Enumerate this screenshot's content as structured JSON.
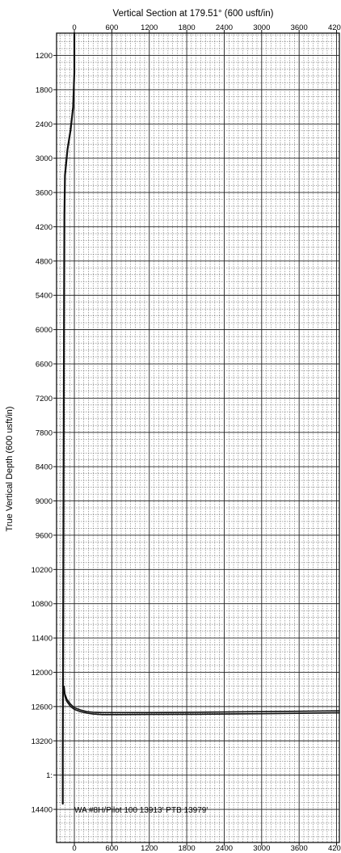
{
  "chart_data": {
    "type": "line",
    "title": "Vertical Section at 179.51° (600 usft/in)",
    "xlabel": "",
    "ylabel": "True Vertical Depth (600 usft/in)",
    "x_axis_position": "top and bottom",
    "y_inverted": true,
    "grid": true,
    "xlim": [
      -285,
      4245
    ],
    "ylim": [
      14980,
      810
    ],
    "x_ticks": [
      0,
      600,
      1200,
      1800,
      2400,
      3000,
      3600,
      4200
    ],
    "x_tick_labels": [
      "0",
      "600",
      "1200",
      "1800",
      "2400",
      "3000",
      "3600",
      "4200"
    ],
    "y_ticks": [
      1200,
      1800,
      2400,
      3000,
      3600,
      4200,
      4800,
      5400,
      6000,
      6600,
      7200,
      7800,
      8400,
      9000,
      9600,
      10200,
      10800,
      11400,
      12000,
      12600,
      13200,
      13800,
      14400
    ],
    "y_tick_labels": [
      "1200",
      "1800",
      "2400",
      "3000",
      "3600",
      "4200",
      "4800",
      "5400",
      "6000",
      "6600",
      "7200",
      "7800",
      "8400",
      "9000",
      "9600",
      "10200",
      "10800",
      "11400",
      "12000",
      "12600",
      "13200",
      "1:",
      "14400"
    ],
    "annotations": [
      {
        "text": "WA #8H/Pilot 100 13913' PTB 13979'",
        "x": 0,
        "y": 14400
      }
    ],
    "series": [
      {
        "color": "#111111",
        "x": [
          0,
          0,
          -20,
          -60,
          -110,
          -150,
          -160,
          -165,
          -170,
          -175,
          -180,
          -185,
          -185
        ],
        "y": [
          810,
          1500,
          2100,
          2500,
          2850,
          3300,
          4000,
          5500,
          7500,
          9500,
          11500,
          13500,
          14300
        ]
      },
      {
        "color": "#111111",
        "x": [
          -170,
          -150,
          -120,
          -60,
          0,
          100,
          200,
          300,
          450,
          700,
          1200,
          2000,
          3000,
          4245
        ],
        "y": [
          12300,
          12420,
          12510,
          12600,
          12650,
          12690,
          12715,
          12730,
          12740,
          12740,
          12738,
          12735,
          12725,
          12710
        ]
      },
      {
        "color": "#111111",
        "x": [
          -165,
          -150,
          -120,
          -60,
          0,
          100,
          200,
          300,
          450,
          700,
          1200,
          2000,
          3000,
          4245
        ],
        "y": [
          12250,
          12380,
          12470,
          12560,
          12620,
          12660,
          12690,
          12700,
          12705,
          12705,
          12705,
          12700,
          12690,
          12675
        ]
      }
    ]
  }
}
